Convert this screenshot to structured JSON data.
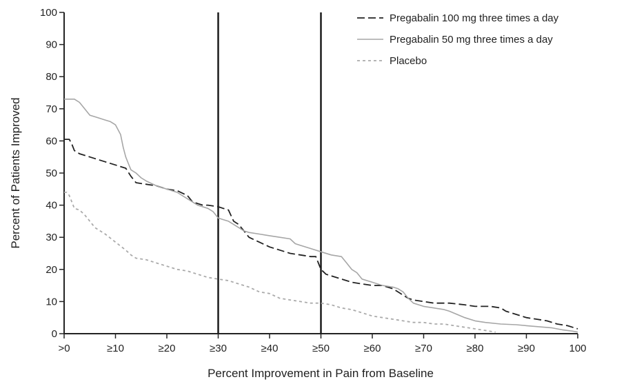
{
  "chart_data": {
    "type": "line",
    "title": "",
    "xlabel": "Percent Improvement in Pain from Baseline",
    "ylabel": "Percent of Patients Improved",
    "xlim": [
      0,
      100
    ],
    "ylim": [
      0,
      100
    ],
    "x_ticks": [
      {
        "value": 0,
        "label": ">0"
      },
      {
        "value": 10,
        "label": "≥10"
      },
      {
        "value": 20,
        "label": "≥20"
      },
      {
        "value": 30,
        "label": "≥30"
      },
      {
        "value": 40,
        "label": "≥40"
      },
      {
        "value": 50,
        "label": "≥50"
      },
      {
        "value": 60,
        "label": "≥60"
      },
      {
        "value": 70,
        "label": "≥70"
      },
      {
        "value": 80,
        "label": "≥80"
      },
      {
        "value": 90,
        "label": "≥90"
      },
      {
        "value": 100,
        "label": "100"
      }
    ],
    "y_ticks": [
      {
        "value": 0,
        "label": "0"
      },
      {
        "value": 10,
        "label": "10"
      },
      {
        "value": 20,
        "label": "20"
      },
      {
        "value": 30,
        "label": "30"
      },
      {
        "value": 40,
        "label": "40"
      },
      {
        "value": 50,
        "label": "50"
      },
      {
        "value": 60,
        "label": "60"
      },
      {
        "value": 70,
        "label": "70"
      },
      {
        "value": 80,
        "label": "80"
      },
      {
        "value": 90,
        "label": "90"
      },
      {
        "value": 100,
        "label": "100"
      }
    ],
    "reference_lines_x": [
      30,
      50
    ],
    "grid": false,
    "legend_position": "top-right",
    "series": [
      {
        "name": "Pregabalin 100 mg three times a day",
        "style": "dashed",
        "color": "#222222",
        "x": [
          0,
          0.5,
          1,
          1.5,
          2,
          3,
          5,
          8,
          10,
          12,
          13,
          14,
          16,
          18,
          20,
          22,
          24,
          25,
          27,
          28,
          30,
          31,
          32,
          33,
          34,
          35,
          36,
          38,
          40,
          42,
          44,
          46,
          48,
          49,
          49.5,
          50,
          51,
          52,
          54,
          56,
          58,
          60,
          62,
          64,
          65,
          66,
          67,
          68,
          70,
          72,
          75,
          78,
          80,
          83,
          85,
          86,
          88,
          90,
          92,
          94,
          96,
          98,
          99,
          100
        ],
        "y": [
          60.5,
          60.5,
          60.5,
          59,
          57,
          56,
          55,
          53.5,
          52.5,
          51.5,
          49,
          47,
          46.5,
          46,
          45,
          44.5,
          43,
          41,
          40,
          40,
          39.5,
          39,
          38.5,
          35,
          34,
          32,
          30,
          28.5,
          27,
          26,
          25,
          24.5,
          24,
          24,
          22,
          20,
          18.5,
          18,
          17,
          16,
          15.5,
          15,
          15,
          14,
          13,
          12,
          11,
          10.5,
          10,
          9.5,
          9.5,
          9,
          8.5,
          8.5,
          8,
          7,
          6,
          5,
          4.5,
          4,
          3,
          2.5,
          2,
          1.5
        ]
      },
      {
        "name": "Pregabalin 50 mg three times a day",
        "style": "solid",
        "color": "#a6a6a6",
        "x": [
          0,
          1,
          1.5,
          2,
          3,
          4,
          5,
          6,
          7,
          8,
          9,
          10,
          11,
          11.5,
          12,
          12.5,
          13,
          14,
          15,
          16,
          18,
          20,
          22,
          24,
          26,
          28,
          29,
          30,
          31,
          32,
          33,
          34,
          35,
          36,
          38,
          40,
          42,
          44,
          45,
          46,
          48,
          50,
          52,
          54,
          55,
          56,
          57,
          58,
          60,
          62,
          64,
          65,
          66,
          67,
          68,
          70,
          72,
          74,
          75,
          78,
          80,
          82,
          85,
          88,
          90,
          92,
          95,
          97,
          99,
          100
        ],
        "y": [
          73,
          73,
          73,
          73,
          72,
          70,
          68,
          67.5,
          67,
          66.5,
          66,
          65,
          62,
          58,
          55,
          53,
          51,
          50,
          48.5,
          47.5,
          46,
          45,
          44,
          42,
          40,
          39,
          38,
          36,
          35.5,
          35,
          34,
          33,
          32,
          31.5,
          31,
          30.5,
          30,
          29.5,
          28,
          27.5,
          26.5,
          25.5,
          24.5,
          24,
          22,
          20,
          19,
          17,
          16,
          15,
          14.5,
          14,
          13,
          11,
          9.5,
          8.5,
          8,
          7.5,
          7,
          5,
          4,
          3.5,
          3,
          2.8,
          2.5,
          2.2,
          1.8,
          1.2,
          0.8,
          0.5
        ]
      },
      {
        "name": "Placebo",
        "style": "dotted",
        "color": "#aaaaaa",
        "x": [
          0,
          0.5,
          1,
          1.5,
          2,
          3,
          4,
          5,
          6,
          8,
          10,
          12,
          13,
          14,
          16,
          18,
          20,
          22,
          24,
          26,
          28,
          30,
          32,
          34,
          36,
          38,
          40,
          42,
          44,
          46,
          48,
          50,
          52,
          54,
          56,
          58,
          60,
          62,
          64,
          66,
          68,
          70,
          72,
          74,
          76,
          78,
          80,
          82,
          84
        ],
        "y": [
          44,
          44,
          43,
          41,
          39,
          38.5,
          37,
          35,
          33,
          31,
          28.5,
          26,
          24.5,
          23.5,
          23,
          22,
          21,
          20,
          19.5,
          18.5,
          17.5,
          17,
          16.5,
          15.5,
          14.5,
          13,
          12.5,
          11,
          10.5,
          10,
          9.5,
          9.5,
          9,
          8,
          7.5,
          6.5,
          5.5,
          5,
          4.5,
          4,
          3.5,
          3.5,
          3,
          3,
          2.5,
          2,
          1.5,
          1,
          0.5
        ]
      }
    ]
  }
}
